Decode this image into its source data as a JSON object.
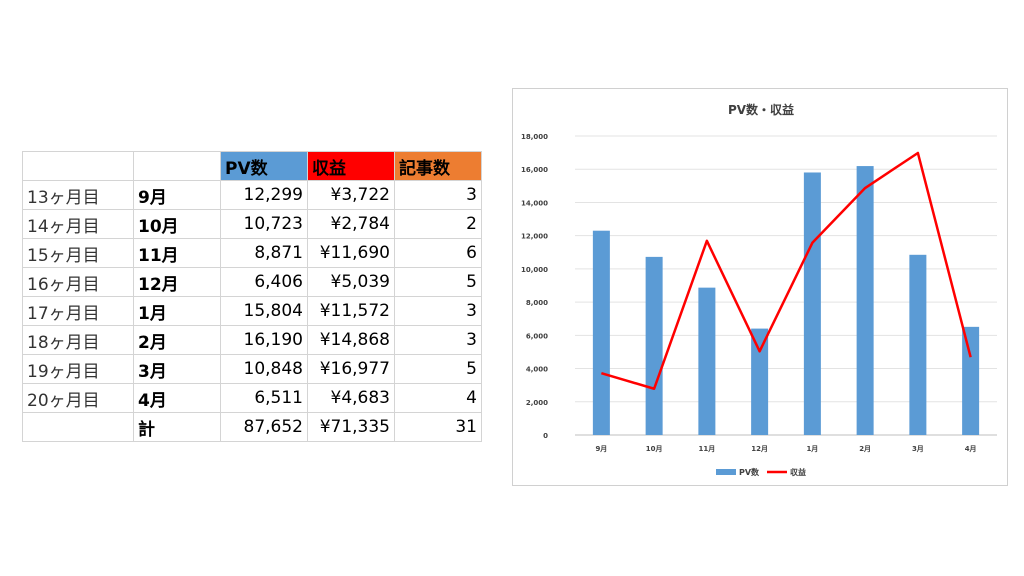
{
  "table": {
    "headers": [
      "",
      "",
      "PV数",
      "収益",
      "記事数"
    ],
    "header_colors": [
      "",
      "",
      "#5b9bd5",
      "#ff0000",
      "#ed7d31"
    ],
    "rows": [
      [
        "13ヶ月目",
        "9月",
        "12,299",
        "¥3,722",
        "3"
      ],
      [
        "14ヶ月目",
        "10月",
        "10,723",
        "¥2,784",
        "2"
      ],
      [
        "15ヶ月目",
        "11月",
        "8,871",
        "¥11,690",
        "6"
      ],
      [
        "16ヶ月目",
        "12月",
        "6,406",
        "¥5,039",
        "5"
      ],
      [
        "17ヶ月目",
        "1月",
        "15,804",
        "¥11,572",
        "3"
      ],
      [
        "18ヶ月目",
        "2月",
        "16,190",
        "¥14,868",
        "3"
      ],
      [
        "19ヶ月目",
        "3月",
        "10,848",
        "¥16,977",
        "5"
      ],
      [
        "20ヶ月目",
        "4月",
        "6,511",
        "¥4,683",
        "4"
      ]
    ],
    "total": [
      "",
      "計",
      "87,652",
      "¥71,335",
      "31"
    ]
  },
  "chart_data": {
    "type": "bar",
    "title": "PV数・収益",
    "categories": [
      "9月",
      "10月",
      "11月",
      "12月",
      "1月",
      "2月",
      "3月",
      "4月"
    ],
    "series": [
      {
        "name": "PV数",
        "type": "bar",
        "color": "#5b9bd5",
        "values": [
          12299,
          10723,
          8871,
          6406,
          15804,
          16190,
          10848,
          6511
        ]
      },
      {
        "name": "収益",
        "type": "line",
        "color": "#ff0000",
        "values": [
          3722,
          2784,
          11690,
          5039,
          11572,
          14868,
          16977,
          4683
        ]
      }
    ],
    "ylim": [
      0,
      18000
    ],
    "yticks": [
      "0",
      "2,000",
      "4,000",
      "6,000",
      "8,000",
      "10,000",
      "12,000",
      "14,000",
      "16,000",
      "18,000"
    ],
    "grid": true,
    "legend_position": "bottom"
  }
}
